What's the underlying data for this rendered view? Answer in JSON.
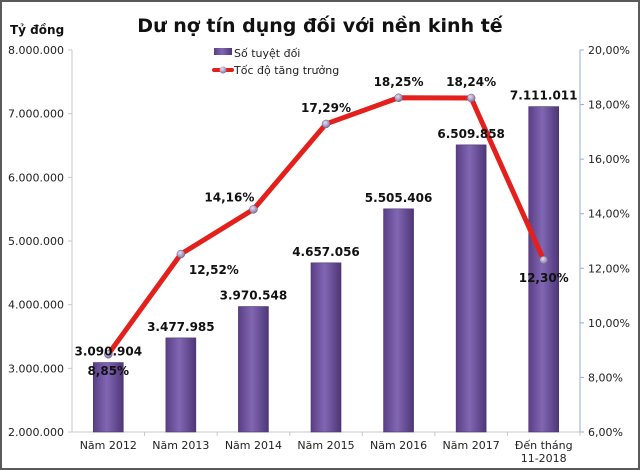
{
  "chart_data": {
    "type": "bar+line",
    "title": "Dư nợ tín dụng đối với nền kinh tế",
    "ylabel": "Tỷ đồng",
    "categories": [
      "Năm 2012",
      "Năm 2013",
      "Năm 2014",
      "Năm 2015",
      "Năm 2016",
      "Năm 2017",
      "Đến tháng|11-2018"
    ],
    "ylim": [
      2000000,
      8000000
    ],
    "y_ticks": [
      "2.000.000",
      "3.000.000",
      "4.000.000",
      "5.000.000",
      "6.000.000",
      "7.000.000",
      "8.000.000"
    ],
    "y2lim": [
      6,
      20
    ],
    "y2_ticks": [
      "6,00%",
      "8,00%",
      "10,00%",
      "12,00%",
      "14,00%",
      "16,00%",
      "18,00%",
      "20,00%"
    ],
    "grid": false,
    "legend": "top-center",
    "series": [
      {
        "name": "Số tuyệt đối",
        "type": "bar",
        "axis": "left",
        "color": "#6b4f9a",
        "values": [
          3090904,
          3477985,
          3970548,
          4657056,
          5505406,
          6509858,
          7111011
        ],
        "labels": [
          "3.090.904",
          "3.477.985",
          "3.970.548",
          "4.657.056",
          "5.505.406",
          "6.509.858",
          "7.111.011"
        ]
      },
      {
        "name": "Tốc độ tăng trưởng",
        "type": "line",
        "axis": "right",
        "color": "#e3201b",
        "values": [
          8.85,
          12.52,
          14.16,
          17.29,
          18.25,
          18.24,
          12.3
        ],
        "labels": [
          "8,85%",
          "12,52%",
          "14,16%",
          "17,29%",
          "18,25%",
          "18,24%",
          "12,30%"
        ]
      }
    ]
  }
}
